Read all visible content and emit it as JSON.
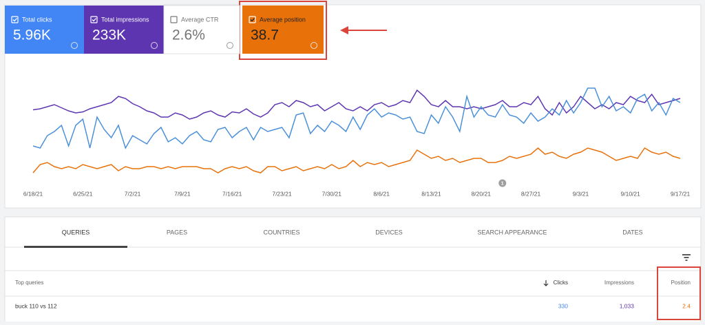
{
  "metrics": [
    {
      "label": "Total clicks",
      "value": "5.96K",
      "color": "#4285f4",
      "checked": true
    },
    {
      "label": "Total impressions",
      "value": "233K",
      "color": "#5e35b1",
      "checked": true
    },
    {
      "label": "Average CTR",
      "value": "2.6%",
      "color": "#ffffff",
      "checked": false
    },
    {
      "label": "Average position",
      "value": "38.7",
      "color": "#e8710a",
      "checked": true
    }
  ],
  "chart_data": {
    "type": "line",
    "categories": [
      "6/18/21",
      null,
      null,
      null,
      null,
      null,
      null,
      "6/25/21",
      null,
      null,
      null,
      null,
      null,
      null,
      "7/2/21",
      null,
      null,
      null,
      null,
      null,
      null,
      "7/9/21",
      null,
      null,
      null,
      null,
      null,
      null,
      "7/16/21",
      null,
      null,
      null,
      null,
      null,
      null,
      "7/23/21",
      null,
      null,
      null,
      null,
      null,
      null,
      "7/30/21",
      null,
      null,
      null,
      null,
      null,
      null,
      "8/6/21",
      null,
      null,
      null,
      null,
      null,
      null,
      "8/13/21",
      null,
      null,
      null,
      null,
      null,
      null,
      "8/20/21",
      null,
      null,
      null,
      null,
      null,
      null,
      "8/27/21",
      null,
      null,
      null,
      null,
      null,
      null,
      "9/3/21",
      null,
      null,
      null,
      null,
      null,
      null,
      "9/10/21",
      null,
      null,
      null,
      null,
      null,
      null,
      "9/17/21"
    ],
    "ylim": [
      0,
      100
    ],
    "series": [
      {
        "color": "#5e35b1",
        "values": [
          67,
          68,
          70,
          72,
          69,
          66,
          64,
          65,
          68,
          70,
          72,
          74,
          80,
          78,
          73,
          70,
          66,
          64,
          60,
          60,
          64,
          62,
          58,
          60,
          64,
          66,
          62,
          60,
          65,
          64,
          68,
          63,
          60,
          64,
          72,
          74,
          70,
          76,
          74,
          70,
          72,
          66,
          70,
          74,
          68,
          66,
          70,
          66,
          72,
          74,
          70,
          72,
          76,
          74,
          86,
          80,
          72,
          70,
          76,
          70,
          70,
          68,
          70,
          68,
          70,
          72,
          76,
          70,
          70,
          74,
          72,
          80,
          68,
          62,
          74,
          64,
          70,
          80,
          74,
          68,
          72,
          68,
          74,
          72,
          80,
          76,
          74,
          82,
          72,
          74,
          76,
          78
        ]
      },
      {
        "color": "#4a90d9",
        "values": [
          32,
          30,
          42,
          46,
          52,
          32,
          52,
          58,
          30,
          60,
          48,
          40,
          52,
          30,
          42,
          38,
          34,
          44,
          50,
          36,
          40,
          34,
          42,
          46,
          38,
          36,
          48,
          50,
          40,
          46,
          50,
          38,
          50,
          46,
          48,
          50,
          40,
          62,
          64,
          44,
          52,
          46,
          56,
          52,
          46,
          60,
          48,
          62,
          68,
          60,
          64,
          62,
          58,
          60,
          46,
          44,
          62,
          54,
          70,
          60,
          46,
          80,
          60,
          70,
          62,
          60,
          72,
          62,
          60,
          54,
          64,
          56,
          60,
          68,
          62,
          76,
          64,
          74,
          88,
          88,
          70,
          80,
          66,
          70,
          64,
          78,
          82,
          66,
          74,
          62,
          78,
          74
        ]
      },
      {
        "color": "#e8710a",
        "values": [
          6,
          14,
          16,
          12,
          10,
          12,
          10,
          14,
          12,
          10,
          12,
          14,
          8,
          12,
          10,
          10,
          12,
          12,
          10,
          12,
          10,
          12,
          12,
          12,
          10,
          10,
          6,
          10,
          12,
          10,
          12,
          8,
          6,
          12,
          12,
          8,
          10,
          12,
          8,
          10,
          12,
          10,
          14,
          10,
          12,
          18,
          12,
          16,
          14,
          16,
          12,
          14,
          16,
          18,
          28,
          24,
          20,
          22,
          18,
          20,
          16,
          18,
          20,
          20,
          16,
          16,
          18,
          22,
          20,
          22,
          24,
          30,
          24,
          26,
          22,
          20,
          24,
          26,
          30,
          28,
          26,
          22,
          18,
          20,
          22,
          20,
          30,
          26,
          24,
          26,
          22,
          20
        ]
      }
    ],
    "annotations": [
      {
        "text": "1",
        "category_index": 66
      }
    ]
  },
  "tabs": [
    "QUERIES",
    "PAGES",
    "COUNTRIES",
    "DEVICES",
    "SEARCH APPEARANCE",
    "DATES"
  ],
  "table": {
    "columns": [
      "Top queries",
      "Clicks",
      "Impressions",
      "Position"
    ],
    "rows": [
      [
        "buck 110 vs 112",
        "330",
        "1,033",
        "2.4"
      ]
    ]
  }
}
